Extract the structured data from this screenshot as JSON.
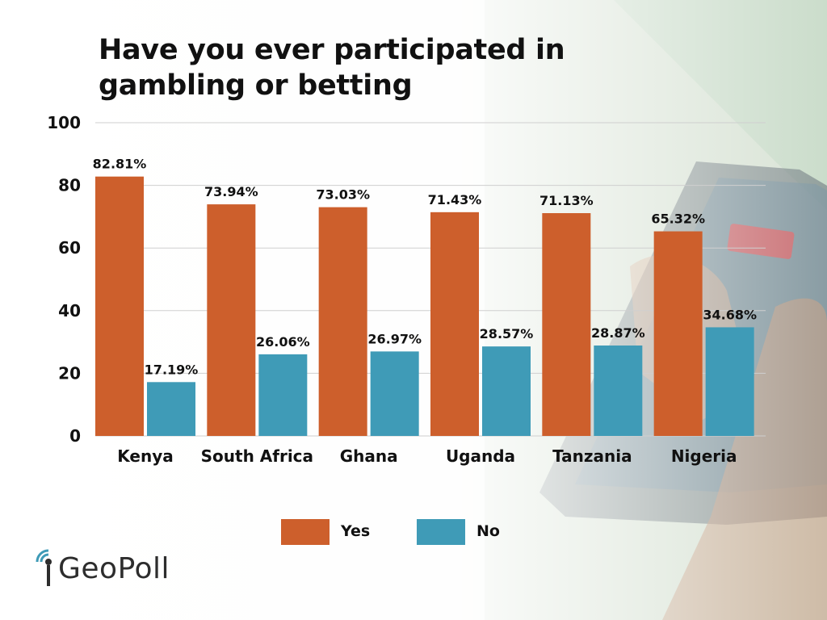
{
  "chart_data": {
    "type": "bar",
    "title": "Have you ever participated in gambling or betting",
    "categories": [
      "Kenya",
      "South Africa",
      "Ghana",
      "Uganda",
      "Tanzania",
      "Nigeria"
    ],
    "series": [
      {
        "name": "Yes",
        "values": [
          82.81,
          73.94,
          73.03,
          71.43,
          71.13,
          65.32
        ],
        "labels": [
          "82.81%",
          "73.94%",
          "73.03%",
          "71.43%",
          "71.13%",
          "65.32%"
        ],
        "color": "#cd5f2c"
      },
      {
        "name": "No",
        "values": [
          17.19,
          26.06,
          26.97,
          28.57,
          28.87,
          34.68
        ],
        "labels": [
          "17.19%",
          "26.06%",
          "26.97%",
          "28.57%",
          "28.87%",
          "34.68%"
        ],
        "color": "#3f9bb7"
      }
    ],
    "ylim": [
      0,
      100
    ],
    "yticks": [
      0,
      20,
      40,
      60,
      80,
      100
    ],
    "grid": true,
    "legend_position": "bottom-center",
    "xlabel": "",
    "ylabel": ""
  },
  "brand": {
    "logo_text": "GeoPoll",
    "logo_color": "#2d2d2d",
    "accent_color": "#3f9bb7"
  }
}
